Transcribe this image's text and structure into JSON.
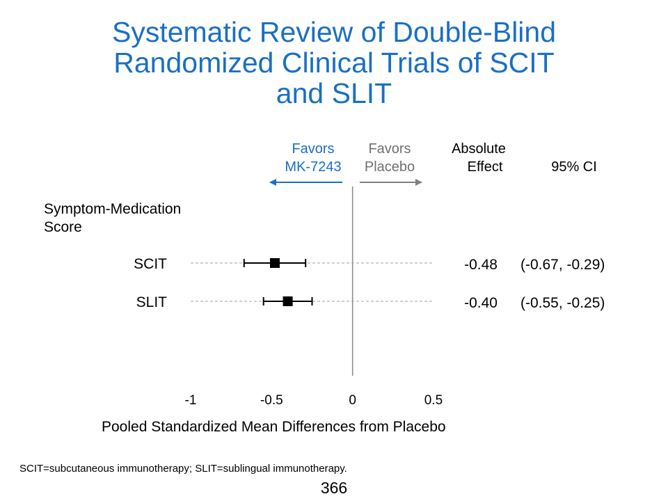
{
  "title": {
    "line1": "Systematic Review of Double-Blind",
    "line2": "Randomized Clinical Trials of SCIT",
    "line3": "and SLIT"
  },
  "headers": {
    "favors_drug_line1": "Favors",
    "favors_drug_line2": "MK-7243",
    "favors_placebo_line1": "Favors",
    "favors_placebo_line2": "Placebo",
    "absolute_effect_line1": "Absolute",
    "absolute_effect_line2": "Effect",
    "ci": "95% CI"
  },
  "outcome_label_line1": "Symptom-Medication",
  "outcome_label_line2": "Score",
  "footnote": "SCIT=subcutaneous immunotherapy; SLIT=sublingual immunotherapy.",
  "page_number": "366",
  "colors": {
    "title": "#1a6fc4",
    "favors_drug": "#1a6fc4",
    "favors_placebo": "#707070"
  },
  "chart_data": {
    "type": "forest",
    "xlabel": "Pooled Standardized Mean Differences from Placebo",
    "xlim": [
      -1,
      0.5
    ],
    "xticks": [
      "-1",
      "-0.5",
      "0",
      "0.5"
    ],
    "reference_line": 0,
    "rows": [
      {
        "label": "SCIT",
        "estimate": -0.48,
        "ci_low": -0.67,
        "ci_high": -0.29,
        "effect_text": "-0.48",
        "ci_text": "(-0.67, -0.29)"
      },
      {
        "label": "SLIT",
        "estimate": -0.4,
        "ci_low": -0.55,
        "ci_high": -0.25,
        "effect_text": "-0.40",
        "ci_text": "(-0.55, -0.25)"
      }
    ]
  }
}
